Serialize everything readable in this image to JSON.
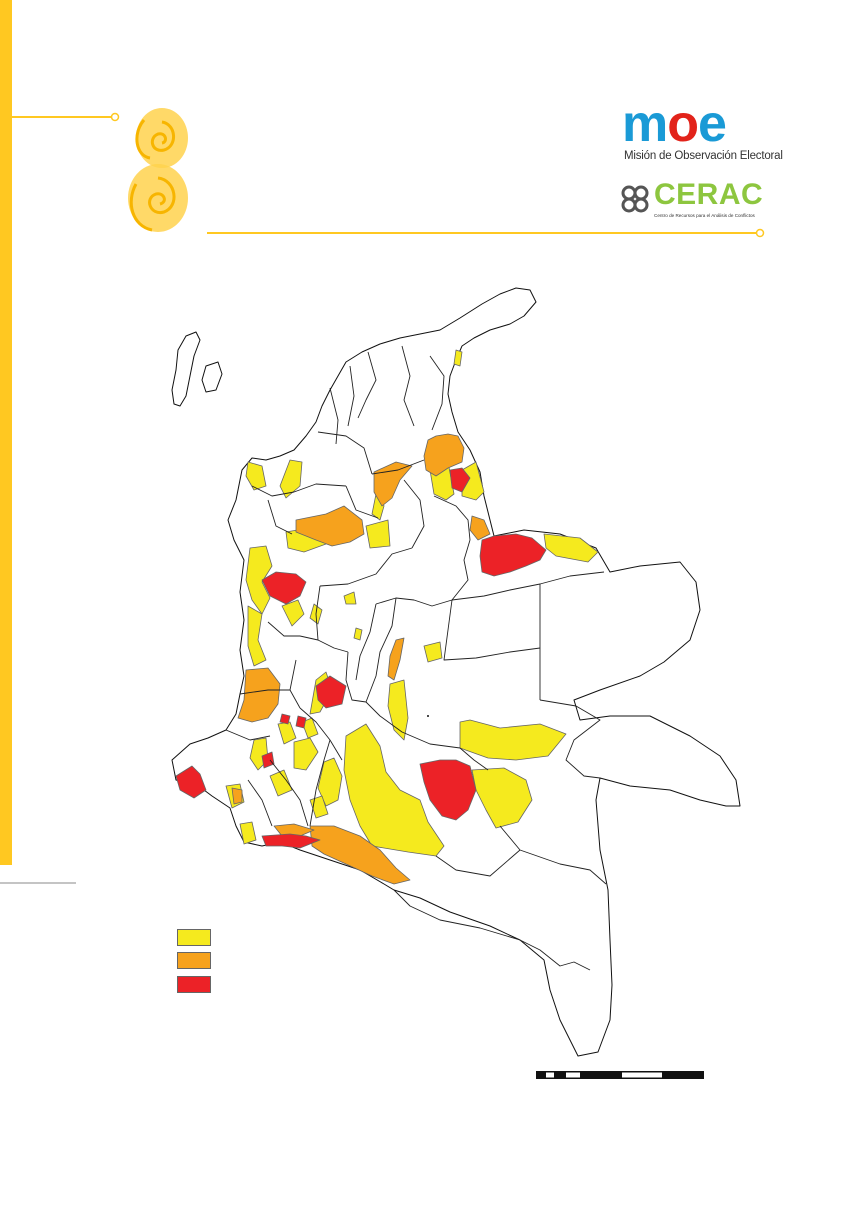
{
  "colors": {
    "accent_yellow": "#ffc821",
    "level_1": "#f5ea1e",
    "level_2": "#f6a21d",
    "level_3": "#ec2227",
    "moe_blue": "#1a9ad6",
    "moe_red": "#e2231a",
    "cerac_green": "#8dc63f",
    "outline": "#111111"
  },
  "logos": {
    "moe": {
      "wordmark": "moe",
      "subtitle": "Misión de Observación Electoral"
    },
    "cerac": {
      "wordmark": "CERAC",
      "subtitle": "Centro de Recursos para el Análisis de Conflictos"
    }
  },
  "legend": {
    "items": [
      {
        "level": 1,
        "color": "#f5ea1e"
      },
      {
        "level": 2,
        "color": "#f6a21d"
      },
      {
        "level": 3,
        "color": "#ec2227"
      }
    ]
  },
  "icons": {
    "swirl": "yellow-swirl-decoration",
    "cerac_mark": "four-loop-knot-icon"
  }
}
